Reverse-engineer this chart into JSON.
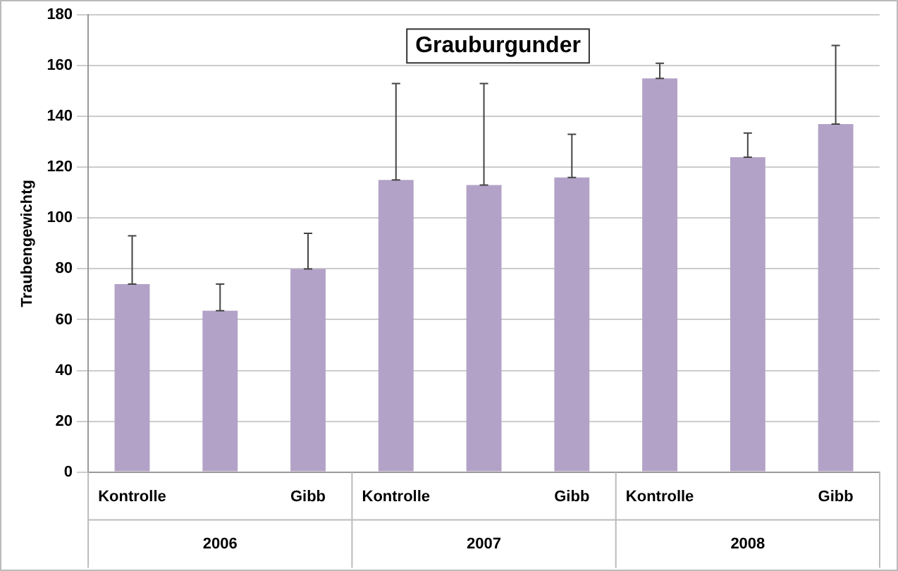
{
  "chart_data": {
    "type": "bar",
    "title": "Grauburgunder",
    "ylabel": "Traubengewichtg",
    "categories": [
      "Kontrolle",
      null,
      "Gibb",
      "Kontrolle",
      null,
      "Gibb",
      "Kontrolle",
      null,
      "Gibb"
    ],
    "values": [
      74,
      63.5,
      80,
      115,
      113,
      116,
      155,
      124,
      137
    ],
    "errors": [
      [
        74,
        93
      ],
      [
        63.5,
        74
      ],
      [
        80,
        94
      ],
      [
        115,
        153
      ],
      [
        113,
        153
      ],
      [
        116,
        133
      ],
      [
        155,
        161
      ],
      [
        124,
        133.5
      ],
      [
        137,
        168
      ]
    ],
    "color": "#b3a2c7",
    "annotations": [
      "2006",
      "2007",
      "2008"
    ],
    "ylim": [
      0,
      180
    ],
    "yticks": [
      0,
      20,
      40,
      60,
      80,
      100,
      120,
      140,
      160,
      180
    ],
    "grid": "y",
    "legend": false
  }
}
